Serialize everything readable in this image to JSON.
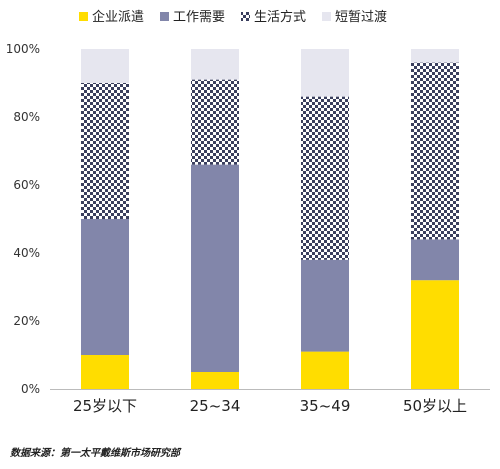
{
  "chart_data": {
    "type": "bar",
    "stacked": true,
    "categories": [
      "25岁以下",
      "25~34",
      "35~49",
      "50岁以上"
    ],
    "series": [
      {
        "name": "企业派遣",
        "color": "#FFDD00",
        "pattern": "solid",
        "values": [
          10,
          5,
          11,
          32
        ]
      },
      {
        "name": "工作需要",
        "color": "#8286AA",
        "pattern": "solid",
        "values": [
          40,
          61,
          27,
          12
        ]
      },
      {
        "name": "生活方式",
        "color": "#3A3F5E",
        "pattern": "checker",
        "values": [
          40,
          25,
          48,
          52
        ]
      },
      {
        "name": "短暂过渡",
        "color": "#E6E6EF",
        "pattern": "solid",
        "values": [
          10,
          9,
          14,
          4
        ]
      }
    ],
    "yticks": [
      "0%",
      "20%",
      "40%",
      "60%",
      "80%",
      "100%"
    ],
    "ylim": [
      0,
      100
    ],
    "legend_position": "top",
    "grid": false
  },
  "source_note": "数据来源：第一太平戴维斯市场研究部"
}
